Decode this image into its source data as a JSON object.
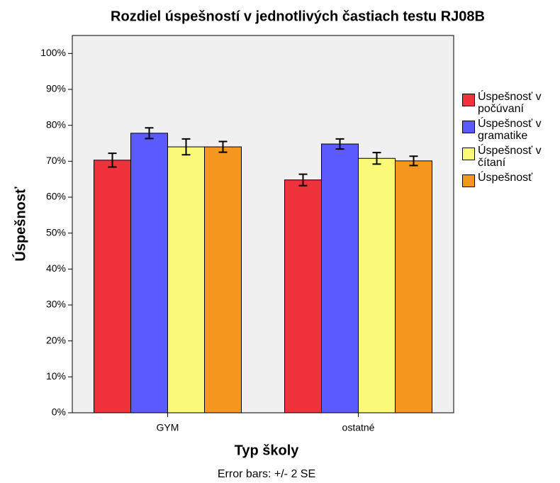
{
  "chart_data": {
    "type": "bar",
    "title": "Rozdiel úspešností v jednotlivých častiach testu RJ08B",
    "xlabel": "Typ školy",
    "ylabel": "Úspešnosť",
    "note": "Error bars: +/- 2 SE",
    "categories": [
      "GYM",
      "ostatné"
    ],
    "series": [
      {
        "name": "Úspešnosť v počúvaní",
        "color": "#f0323c",
        "values": [
          70.3,
          64.8
        ],
        "errors": [
          1.9,
          1.6
        ]
      },
      {
        "name": "Úspešnosť v gramatike",
        "color": "#5a5aff",
        "values": [
          77.8,
          74.8
        ],
        "errors": [
          1.5,
          1.4
        ]
      },
      {
        "name": "Úspešnosť v čítaní",
        "color": "#fafa78",
        "values": [
          74.0,
          70.8
        ],
        "errors": [
          2.2,
          1.6
        ]
      },
      {
        "name": "Úspešnosť",
        "color": "#f5961e",
        "values": [
          74.0,
          70.1
        ],
        "errors": [
          1.5,
          1.3
        ]
      }
    ],
    "ylim": [
      0,
      105
    ],
    "yticks": [
      {
        "value": 0,
        "label": "0%"
      },
      {
        "value": 10,
        "label": "10%"
      },
      {
        "value": 20,
        "label": "20%"
      },
      {
        "value": 30,
        "label": "30%"
      },
      {
        "value": 40,
        "label": "40%"
      },
      {
        "value": 50,
        "label": "50%"
      },
      {
        "value": 60,
        "label": "60%"
      },
      {
        "value": 70,
        "label": "70%"
      },
      {
        "value": 80,
        "label": "80%"
      },
      {
        "value": 90,
        "label": "90%"
      },
      {
        "value": 100,
        "label": "100%"
      }
    ],
    "legend": "right"
  }
}
